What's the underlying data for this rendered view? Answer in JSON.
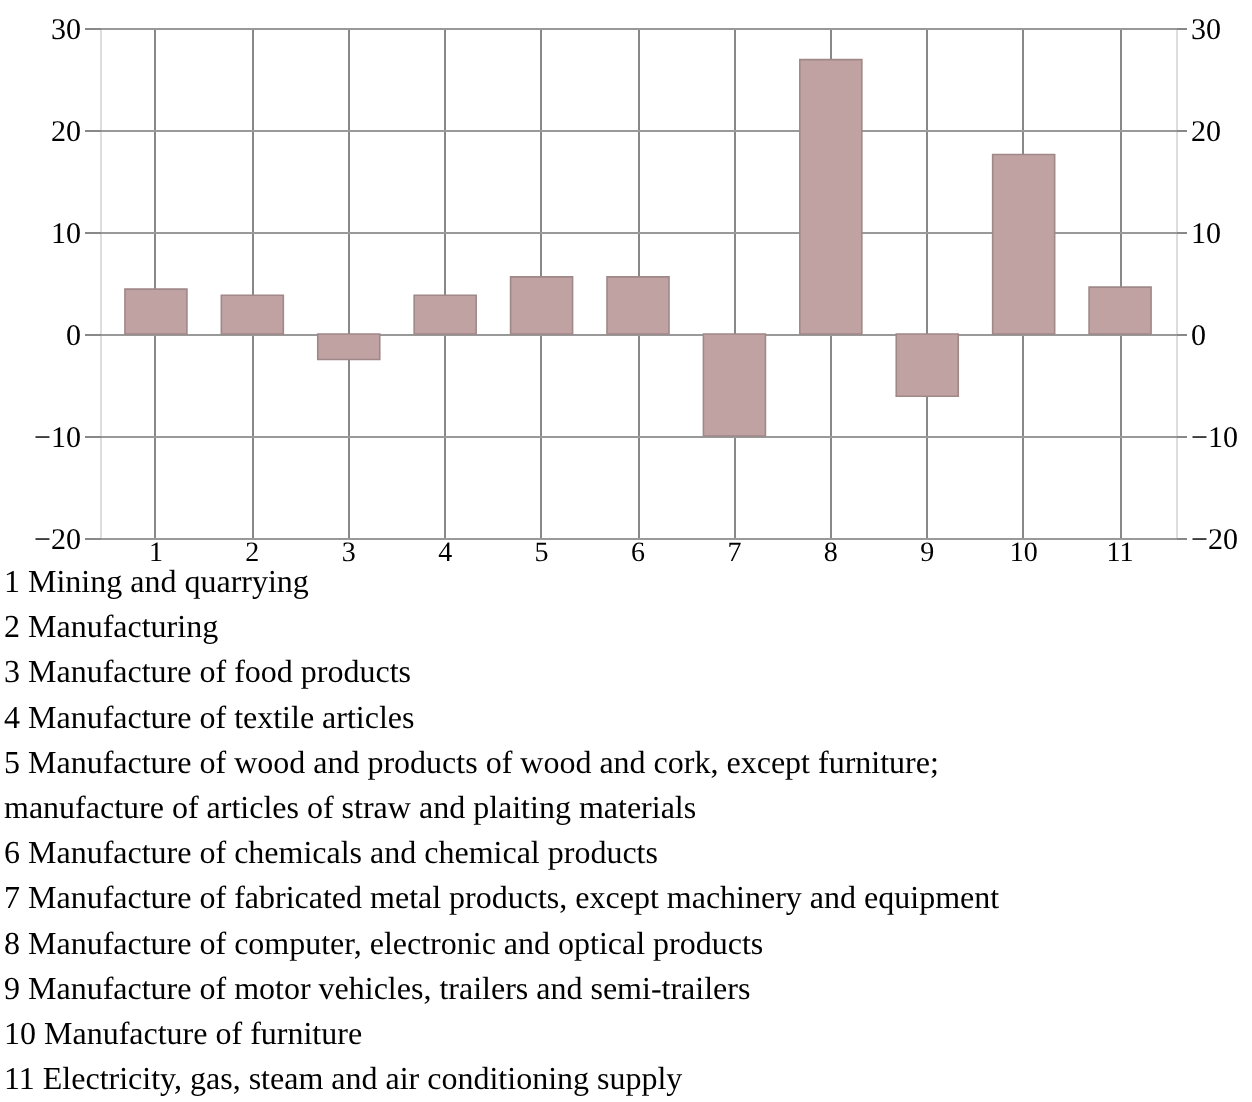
{
  "chart_data": {
    "type": "bar",
    "categories": [
      "1",
      "2",
      "3",
      "4",
      "5",
      "6",
      "7",
      "8",
      "9",
      "10",
      "11"
    ],
    "values": [
      4.4,
      3.8,
      -2.5,
      3.8,
      5.6,
      5.6,
      -10,
      26.9,
      -6.1,
      17.6,
      4.6
    ],
    "color": "#c0a2a3",
    "ylim": [
      -20,
      30
    ],
    "yticks": [
      -20,
      -10,
      0,
      10,
      20,
      30
    ],
    "y2lim": [
      -20,
      30
    ],
    "y2ticks": [
      -20,
      -10,
      0,
      10,
      20,
      30
    ],
    "grid": true,
    "annotations": [
      "1 Mining and quarrying",
      "2 Manufacturing",
      "3 Manufacture of food products",
      "4 Manufacture of textile articles",
      "5 Manufacture of wood and products of wood and cork, except furniture; manufacture of articles of straw and plaiting materials",
      "6 Manufacture of chemicals and chemical products",
      "7 Manufacture of fabricated metal products, except machinery and equipment",
      "8 Manufacture of computer, electronic and optical products",
      "9 Manufacture of motor vehicles, trailers and semi-trailers",
      "10 Manufacture of furniture",
      "11 Electricity, gas, steam and air conditioning supply"
    ]
  }
}
